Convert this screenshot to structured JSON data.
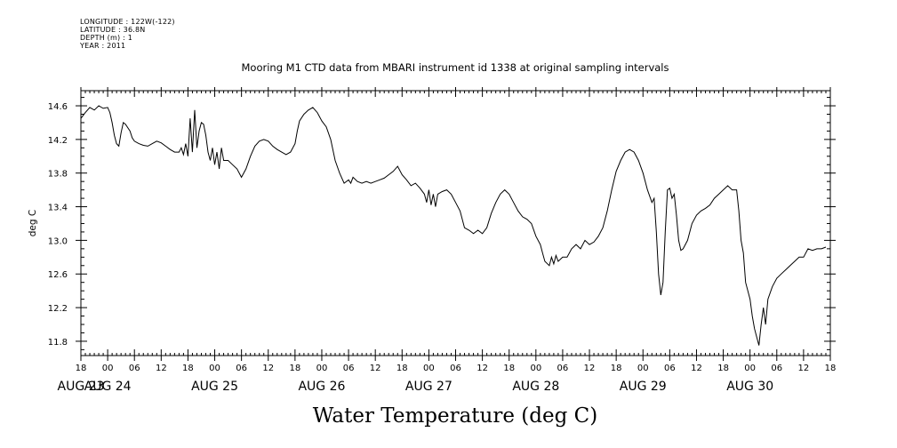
{
  "header": {
    "longitude": "LONGITUDE : 122W(-122)",
    "latitude": "LATITUDE : 36.8N",
    "depth": "DEPTH (m) : 1",
    "year": "YEAR : 2011"
  },
  "chart_data": {
    "type": "line",
    "title": "Mooring M1 CTD data from MBARI instrument id 1338 at original sampling intervals",
    "bottom_title": "Water Temperature (deg C)",
    "ylabel": "deg C",
    "xlim": [
      -6,
      162
    ],
    "ylim": [
      11.63,
      14.78
    ],
    "yticks": [
      11.8,
      12.2,
      12.6,
      13.0,
      13.4,
      13.8,
      14.2,
      14.6
    ],
    "ytick_labels": [
      "11.8",
      "12.2",
      "12.6",
      "13.0",
      "13.4",
      "13.8",
      "14.2",
      "14.6"
    ],
    "hour_tick_labels": [
      {
        "x": -6,
        "label": "18"
      },
      {
        "x": 0,
        "label": "00"
      },
      {
        "x": 6,
        "label": "06"
      },
      {
        "x": 12,
        "label": "12"
      },
      {
        "x": 18,
        "label": "18"
      },
      {
        "x": 24,
        "label": "00"
      },
      {
        "x": 30,
        "label": "06"
      },
      {
        "x": 36,
        "label": "12"
      },
      {
        "x": 42,
        "label": "18"
      },
      {
        "x": 48,
        "label": "00"
      },
      {
        "x": 54,
        "label": "06"
      },
      {
        "x": 60,
        "label": "12"
      },
      {
        "x": 66,
        "label": "18"
      },
      {
        "x": 72,
        "label": "00"
      },
      {
        "x": 78,
        "label": "06"
      },
      {
        "x": 84,
        "label": "12"
      },
      {
        "x": 90,
        "label": "18"
      },
      {
        "x": 96,
        "label": "00"
      },
      {
        "x": 102,
        "label": "06"
      },
      {
        "x": 108,
        "label": "12"
      },
      {
        "x": 114,
        "label": "18"
      },
      {
        "x": 120,
        "label": "00"
      },
      {
        "x": 126,
        "label": "06"
      },
      {
        "x": 132,
        "label": "12"
      },
      {
        "x": 138,
        "label": "18"
      },
      {
        "x": 144,
        "label": "00"
      },
      {
        "x": 150,
        "label": "06"
      },
      {
        "x": 156,
        "label": "12"
      },
      {
        "x": 162,
        "label": "18"
      }
    ],
    "day_labels": [
      {
        "x": -6,
        "label": "AUG 23"
      },
      {
        "x": 0,
        "label": "AUG 24"
      },
      {
        "x": 24,
        "label": "AUG 25"
      },
      {
        "x": 48,
        "label": "AUG 26"
      },
      {
        "x": 72,
        "label": "AUG 27"
      },
      {
        "x": 96,
        "label": "AUG 28"
      },
      {
        "x": 120,
        "label": "AUG 29"
      },
      {
        "x": 144,
        "label": "AUG 30"
      }
    ],
    "x_unit": "hours since AUG 24 00:00",
    "series": [
      {
        "values": [
          [
            -6,
            14.45
          ],
          [
            -5,
            14.52
          ],
          [
            -4,
            14.58
          ],
          [
            -3,
            14.55
          ],
          [
            -2,
            14.6
          ],
          [
            -1,
            14.57
          ],
          [
            0,
            14.58
          ],
          [
            0.5,
            14.52
          ],
          [
            1,
            14.4
          ],
          [
            1.5,
            14.25
          ],
          [
            2,
            14.15
          ],
          [
            2.5,
            14.12
          ],
          [
            3,
            14.28
          ],
          [
            3.5,
            14.4
          ],
          [
            4,
            14.38
          ],
          [
            5,
            14.3
          ],
          [
            5.5,
            14.22
          ],
          [
            6,
            14.18
          ],
          [
            7,
            14.15
          ],
          [
            8,
            14.13
          ],
          [
            9,
            14.12
          ],
          [
            10,
            14.15
          ],
          [
            11,
            14.18
          ],
          [
            12,
            14.16
          ],
          [
            13,
            14.12
          ],
          [
            14,
            14.08
          ],
          [
            15,
            14.05
          ],
          [
            16,
            14.05
          ],
          [
            16.5,
            14.1
          ],
          [
            17,
            14.02
          ],
          [
            17.5,
            14.15
          ],
          [
            18,
            14.0
          ],
          [
            18.5,
            14.45
          ],
          [
            19,
            14.05
          ],
          [
            19.5,
            14.55
          ],
          [
            20,
            14.1
          ],
          [
            20.5,
            14.3
          ],
          [
            21,
            14.4
          ],
          [
            21.5,
            14.38
          ],
          [
            22,
            14.25
          ],
          [
            22.5,
            14.05
          ],
          [
            23,
            13.95
          ],
          [
            23.5,
            14.1
          ],
          [
            24,
            13.9
          ],
          [
            24.5,
            14.05
          ],
          [
            25,
            13.85
          ],
          [
            25.5,
            14.1
          ],
          [
            26,
            13.95
          ],
          [
            27,
            13.95
          ],
          [
            28,
            13.9
          ],
          [
            29,
            13.85
          ],
          [
            30,
            13.75
          ],
          [
            31,
            13.85
          ],
          [
            32,
            14.0
          ],
          [
            33,
            14.12
          ],
          [
            34,
            14.18
          ],
          [
            35,
            14.2
          ],
          [
            36,
            14.18
          ],
          [
            37,
            14.12
          ],
          [
            38,
            14.08
          ],
          [
            39,
            14.05
          ],
          [
            40,
            14.02
          ],
          [
            41,
            14.05
          ],
          [
            42,
            14.15
          ],
          [
            42.5,
            14.3
          ],
          [
            43,
            14.42
          ],
          [
            44,
            14.5
          ],
          [
            45,
            14.55
          ],
          [
            46,
            14.58
          ],
          [
            47,
            14.52
          ],
          [
            48,
            14.42
          ],
          [
            49,
            14.35
          ],
          [
            50,
            14.2
          ],
          [
            51,
            13.95
          ],
          [
            52,
            13.8
          ],
          [
            53,
            13.68
          ],
          [
            54,
            13.72
          ],
          [
            54.5,
            13.68
          ],
          [
            55,
            13.75
          ],
          [
            56,
            13.7
          ],
          [
            57,
            13.68
          ],
          [
            58,
            13.7
          ],
          [
            59,
            13.68
          ],
          [
            60,
            13.7
          ],
          [
            61,
            13.72
          ],
          [
            62,
            13.74
          ],
          [
            63,
            13.78
          ],
          [
            64,
            13.82
          ],
          [
            65,
            13.88
          ],
          [
            66,
            13.78
          ],
          [
            67,
            13.72
          ],
          [
            68,
            13.65
          ],
          [
            69,
            13.68
          ],
          [
            70,
            13.62
          ],
          [
            71,
            13.55
          ],
          [
            71.5,
            13.45
          ],
          [
            72,
            13.6
          ],
          [
            72.5,
            13.42
          ],
          [
            73,
            13.55
          ],
          [
            73.5,
            13.4
          ],
          [
            74,
            13.55
          ],
          [
            75,
            13.58
          ],
          [
            76,
            13.6
          ],
          [
            77,
            13.55
          ],
          [
            78,
            13.45
          ],
          [
            79,
            13.35
          ],
          [
            80,
            13.15
          ],
          [
            81,
            13.12
          ],
          [
            82,
            13.08
          ],
          [
            83,
            13.12
          ],
          [
            84,
            13.08
          ],
          [
            85,
            13.15
          ],
          [
            86,
            13.32
          ],
          [
            87,
            13.45
          ],
          [
            88,
            13.55
          ],
          [
            89,
            13.6
          ],
          [
            90,
            13.55
          ],
          [
            91,
            13.45
          ],
          [
            92,
            13.35
          ],
          [
            93,
            13.28
          ],
          [
            94,
            13.25
          ],
          [
            95,
            13.2
          ],
          [
            96,
            13.05
          ],
          [
            97,
            12.95
          ],
          [
            97.5,
            12.85
          ],
          [
            98,
            12.75
          ],
          [
            99,
            12.7
          ],
          [
            99.5,
            12.8
          ],
          [
            100,
            12.72
          ],
          [
            100.5,
            12.82
          ],
          [
            101,
            12.75
          ],
          [
            102,
            12.8
          ],
          [
            103,
            12.8
          ],
          [
            104,
            12.9
          ],
          [
            105,
            12.95
          ],
          [
            106,
            12.9
          ],
          [
            107,
            13.0
          ],
          [
            108,
            12.95
          ],
          [
            109,
            12.98
          ],
          [
            110,
            13.05
          ],
          [
            111,
            13.15
          ],
          [
            112,
            13.35
          ],
          [
            113,
            13.6
          ],
          [
            114,
            13.82
          ],
          [
            115,
            13.95
          ],
          [
            116,
            14.05
          ],
          [
            117,
            14.08
          ],
          [
            118,
            14.05
          ],
          [
            119,
            13.95
          ],
          [
            120,
            13.8
          ],
          [
            121,
            13.6
          ],
          [
            122,
            13.45
          ],
          [
            122.5,
            13.5
          ],
          [
            123,
            13.1
          ],
          [
            123.5,
            12.6
          ],
          [
            124,
            12.35
          ],
          [
            124.5,
            12.5
          ],
          [
            125,
            13.1
          ],
          [
            125.5,
            13.6
          ],
          [
            126,
            13.62
          ],
          [
            126.5,
            13.5
          ],
          [
            127,
            13.55
          ],
          [
            127.5,
            13.3
          ],
          [
            128,
            13.0
          ],
          [
            128.5,
            12.88
          ],
          [
            129,
            12.9
          ],
          [
            130,
            13.0
          ],
          [
            131,
            13.2
          ],
          [
            132,
            13.3
          ],
          [
            133,
            13.35
          ],
          [
            134,
            13.38
          ],
          [
            135,
            13.42
          ],
          [
            136,
            13.5
          ],
          [
            137,
            13.55
          ],
          [
            138,
            13.6
          ],
          [
            139,
            13.65
          ],
          [
            140,
            13.6
          ],
          [
            141,
            13.6
          ],
          [
            141.5,
            13.35
          ],
          [
            142,
            13.0
          ],
          [
            142.5,
            12.85
          ],
          [
            143,
            12.5
          ],
          [
            144,
            12.3
          ],
          [
            144.5,
            12.1
          ],
          [
            145,
            11.95
          ],
          [
            145.5,
            11.85
          ],
          [
            146,
            11.75
          ],
          [
            146.5,
            12.0
          ],
          [
            147,
            12.2
          ],
          [
            147.5,
            12.0
          ],
          [
            148,
            12.3
          ],
          [
            149,
            12.45
          ],
          [
            150,
            12.55
          ],
          [
            151,
            12.6
          ],
          [
            152,
            12.65
          ],
          [
            153,
            12.7
          ],
          [
            154,
            12.75
          ],
          [
            155,
            12.8
          ],
          [
            156,
            12.8
          ],
          [
            157,
            12.9
          ],
          [
            158,
            12.88
          ],
          [
            159,
            12.9
          ],
          [
            160,
            12.9
          ],
          [
            161,
            12.92
          ]
        ]
      }
    ]
  }
}
